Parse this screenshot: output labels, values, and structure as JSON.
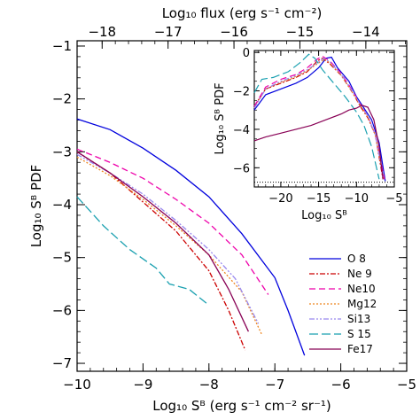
{
  "chart_data": [
    {
      "type": "line",
      "name": "main",
      "xlabel": "Log₁₀ Sᴮ (erg s⁻¹ cm⁻² sr⁻¹)",
      "ylabel": "Log₁₀ Sᴮ PDF",
      "top_xlabel": "Log₁₀ flux (erg s⁻¹ cm⁻²)",
      "xlim": [
        -10,
        -5
      ],
      "ylim": [
        -7.15,
        -0.9
      ],
      "xticks": [
        -10,
        -9,
        -8,
        -7,
        -6,
        -5
      ],
      "yticks": [
        -7,
        -6,
        -5,
        -4,
        -3,
        -2,
        -1
      ],
      "top_xticks": [
        -18,
        -17,
        -16,
        -15,
        -14
      ],
      "top_xtick_positions": [
        -9.62,
        -8.62,
        -7.62,
        -6.62,
        -5.62
      ],
      "legend": "right",
      "series": [
        {
          "name": "O  8",
          "color": "#0000dd",
          "dash": "",
          "x": [
            -10,
            -9.5,
            -9.0,
            -8.5,
            -8.0,
            -7.5,
            -7.0,
            -6.8,
            -6.55
          ],
          "y": [
            -2.38,
            -2.58,
            -2.93,
            -3.35,
            -3.85,
            -4.55,
            -5.38,
            -6.0,
            -6.85
          ]
        },
        {
          "name": "Ne 9",
          "color": "#cc0000",
          "dash": "6,2,2,2",
          "x": [
            -10,
            -9.5,
            -9.0,
            -8.5,
            -8.0,
            -7.7,
            -7.45
          ],
          "y": [
            -3.0,
            -3.4,
            -3.95,
            -4.5,
            -5.25,
            -6.0,
            -6.75
          ]
        },
        {
          "name": "Ne10",
          "color": "#ee00aa",
          "dash": "7,4",
          "x": [
            -10,
            -9.5,
            -9.0,
            -8.5,
            -8.0,
            -7.5,
            -7.1
          ],
          "y": [
            -2.95,
            -3.2,
            -3.5,
            -3.9,
            -4.35,
            -4.95,
            -5.7
          ]
        },
        {
          "name": "Mg12",
          "color": "#ee8822",
          "dash": "2,2",
          "x": [
            -10,
            -9.5,
            -9.0,
            -8.5,
            -8.0,
            -7.5,
            -7.2
          ],
          "y": [
            -3.1,
            -3.45,
            -3.9,
            -4.4,
            -4.95,
            -5.65,
            -6.45
          ]
        },
        {
          "name": "Si13",
          "color": "#9988ee",
          "dash": "6,2,2,2,2,2",
          "x": [
            -10,
            -9.5,
            -9.0,
            -8.5,
            -8.0,
            -7.6,
            -7.25
          ],
          "y": [
            -3.05,
            -3.4,
            -3.8,
            -4.3,
            -4.85,
            -5.4,
            -6.25
          ]
        },
        {
          "name": "S 15",
          "color": "#1aa0b0",
          "dash": "10,4",
          "x": [
            -10,
            -9.6,
            -9.2,
            -8.8,
            -8.6,
            -8.3,
            -8.0
          ],
          "y": [
            -3.85,
            -4.4,
            -4.85,
            -5.2,
            -5.5,
            -5.6,
            -5.9
          ]
        },
        {
          "name": "Fe17",
          "color": "#880055",
          "dash": "",
          "x": [
            -10,
            -9.5,
            -9.0,
            -8.5,
            -8.0,
            -7.7,
            -7.4
          ],
          "y": [
            -3.0,
            -3.4,
            -3.85,
            -4.35,
            -4.95,
            -5.6,
            -6.4
          ]
        }
      ]
    },
    {
      "type": "line",
      "name": "inset",
      "xlabel": "Log₁₀ Sᴮ",
      "ylabel": "Log₁₀ Sᴮ PDF",
      "xlim": [
        -23.5,
        -5
      ],
      "ylim": [
        -7.0,
        0.1
      ],
      "xticks": [
        -20,
        -15,
        -10,
        -5
      ],
      "yticks": [
        -6,
        -4,
        -2,
        0
      ],
      "reference_line_y": -6.75,
      "series": [
        {
          "name": "O  8",
          "color": "#0000dd",
          "dash": "",
          "x": [
            -23.5,
            -22,
            -20,
            -18,
            -16.5,
            -15,
            -14,
            -13.3,
            -12.5,
            -11,
            -10,
            -9,
            -8,
            -7,
            -6.2
          ],
          "y": [
            -3.0,
            -2.2,
            -1.9,
            -1.6,
            -1.3,
            -0.8,
            -0.3,
            -0.25,
            -0.8,
            -1.5,
            -2.3,
            -2.9,
            -3.5,
            -4.7,
            -6.7
          ]
        },
        {
          "name": "Ne 9",
          "color": "#cc0000",
          "dash": "6,2,2,2",
          "x": [
            -23.5,
            -22,
            -20,
            -18,
            -16.5,
            -15.2,
            -14.5,
            -13.5,
            -12,
            -10.5,
            -9.5,
            -8.5,
            -7.5,
            -6.5
          ],
          "y": [
            -2.8,
            -1.9,
            -1.6,
            -1.3,
            -1.0,
            -0.45,
            -0.3,
            -0.6,
            -1.2,
            -2.1,
            -2.8,
            -3.4,
            -4.3,
            -6.6
          ]
        },
        {
          "name": "Ne10",
          "color": "#ee00aa",
          "dash": "7,4",
          "x": [
            -23.5,
            -22,
            -20,
            -18,
            -16.5,
            -15.2,
            -14.5,
            -13.5,
            -12,
            -10.5,
            -9.5,
            -8.5,
            -7.5,
            -6.3
          ],
          "y": [
            -2.8,
            -1.8,
            -1.4,
            -1.15,
            -0.8,
            -0.35,
            -0.2,
            -0.45,
            -1.1,
            -2.0,
            -2.7,
            -3.3,
            -4.3,
            -6.6
          ]
        },
        {
          "name": "Mg12",
          "color": "#ee8822",
          "dash": "2,2",
          "x": [
            -23.5,
            -22,
            -20,
            -18,
            -16.5,
            -15,
            -14.2,
            -13.5,
            -12,
            -10.5,
            -9.5,
            -8.5,
            -7.5,
            -6.4
          ],
          "y": [
            -2.9,
            -1.9,
            -1.55,
            -1.25,
            -0.95,
            -0.55,
            -0.35,
            -0.55,
            -1.2,
            -2.1,
            -2.75,
            -3.35,
            -4.3,
            -6.6
          ]
        },
        {
          "name": "Si13",
          "color": "#9988ee",
          "dash": "6,2,2,2,2,2",
          "x": [
            -23.5,
            -22,
            -20,
            -18,
            -16.5,
            -15,
            -14.3,
            -13.5,
            -12,
            -10.5,
            -9.5,
            -8.5,
            -7.5,
            -6.4
          ],
          "y": [
            -2.9,
            -1.9,
            -1.5,
            -1.2,
            -0.9,
            -0.5,
            -0.3,
            -0.5,
            -1.15,
            -2.05,
            -2.7,
            -3.3,
            -4.3,
            -6.6
          ]
        },
        {
          "name": "S 15",
          "color": "#1aa0b0",
          "dash": "10,4",
          "x": [
            -23.5,
            -22.5,
            -21,
            -19,
            -17.5,
            -16.3,
            -15.5,
            -14.5,
            -13,
            -11.5,
            -10,
            -9,
            -8,
            -7
          ],
          "y": [
            -2.1,
            -1.4,
            -1.3,
            -1.0,
            -0.55,
            -0.1,
            -0.3,
            -0.9,
            -1.6,
            -2.3,
            -3.1,
            -3.8,
            -4.9,
            -6.6
          ]
        },
        {
          "name": "Fe17",
          "color": "#880055",
          "dash": "",
          "x": [
            -23.5,
            -22,
            -20,
            -18,
            -16,
            -14,
            -12,
            -11,
            -10,
            -9.3,
            -8.5,
            -7.7,
            -7,
            -6.5
          ],
          "y": [
            -4.6,
            -4.4,
            -4.2,
            -4.0,
            -3.8,
            -3.5,
            -3.2,
            -3.0,
            -2.9,
            -2.75,
            -2.85,
            -3.5,
            -4.9,
            -6.6
          ]
        }
      ]
    }
  ]
}
